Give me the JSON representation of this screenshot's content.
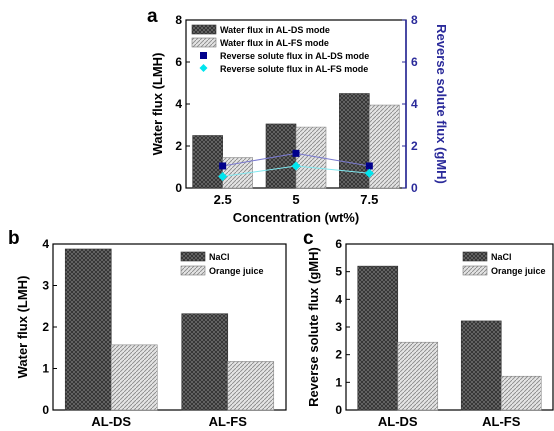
{
  "chart_data": [
    {
      "panel": "a",
      "type": "bar",
      "xlabel": "Concentration (wt%)",
      "ylabel": "Water flux (LMH)",
      "y2label": "Reverse solute flux (gMH)",
      "categories": [
        "2.5",
        "5",
        "7.5"
      ],
      "ylim": [
        0,
        8
      ],
      "yticks": [
        "0",
        "2",
        "4",
        "6",
        "8"
      ],
      "y2lim": [
        0,
        8
      ],
      "y2ticks": [
        "0",
        "2",
        "4",
        "6",
        "8"
      ],
      "series": [
        {
          "name": "Water flux in AL-DS mode",
          "kind": "bar",
          "axis": "left",
          "values": [
            2.5,
            3.05,
            4.5
          ]
        },
        {
          "name": "Water flux in AL-FS mode",
          "kind": "bar",
          "axis": "left",
          "values": [
            1.45,
            2.9,
            3.95
          ]
        },
        {
          "name": "Reverse solute flux in AL-DS mode",
          "kind": "line-square",
          "axis": "right",
          "values": [
            1.05,
            1.65,
            1.05
          ]
        },
        {
          "name": "Reverse solute flux in AL-FS mode",
          "kind": "line-diamond",
          "axis": "right",
          "values": [
            0.55,
            1.05,
            0.7
          ]
        }
      ],
      "legend": "top-left",
      "colors": {
        "ds_bar": "#555555",
        "fs_bar": "#c8c8c8",
        "ds_line": "#00008b",
        "fs_line": "#00e5ee",
        "y2axis": "#2a2a9a"
      }
    },
    {
      "panel": "b",
      "type": "bar",
      "xlabel": "",
      "ylabel": "Water flux (LMH)",
      "categories": [
        "AL-DS",
        "AL-FS"
      ],
      "ylim": [
        0,
        4
      ],
      "yticks": [
        "0",
        "1",
        "2",
        "3",
        "4"
      ],
      "series": [
        {
          "name": "NaCl",
          "values": [
            3.88,
            2.32
          ]
        },
        {
          "name": "Orange juice",
          "values": [
            1.57,
            1.17
          ]
        }
      ],
      "legend": "top-right"
    },
    {
      "panel": "c",
      "type": "bar",
      "xlabel": "",
      "ylabel": "Reverse solute flux (gMH)",
      "categories": [
        "AL-DS",
        "AL-FS"
      ],
      "ylim": [
        0,
        6
      ],
      "yticks": [
        "0",
        "1",
        "2",
        "3",
        "4",
        "5",
        "6"
      ],
      "series": [
        {
          "name": "NaCl",
          "values": [
            5.2,
            3.22
          ]
        },
        {
          "name": "Orange juice",
          "values": [
            2.45,
            1.22
          ]
        }
      ],
      "legend": "top-right"
    }
  ]
}
